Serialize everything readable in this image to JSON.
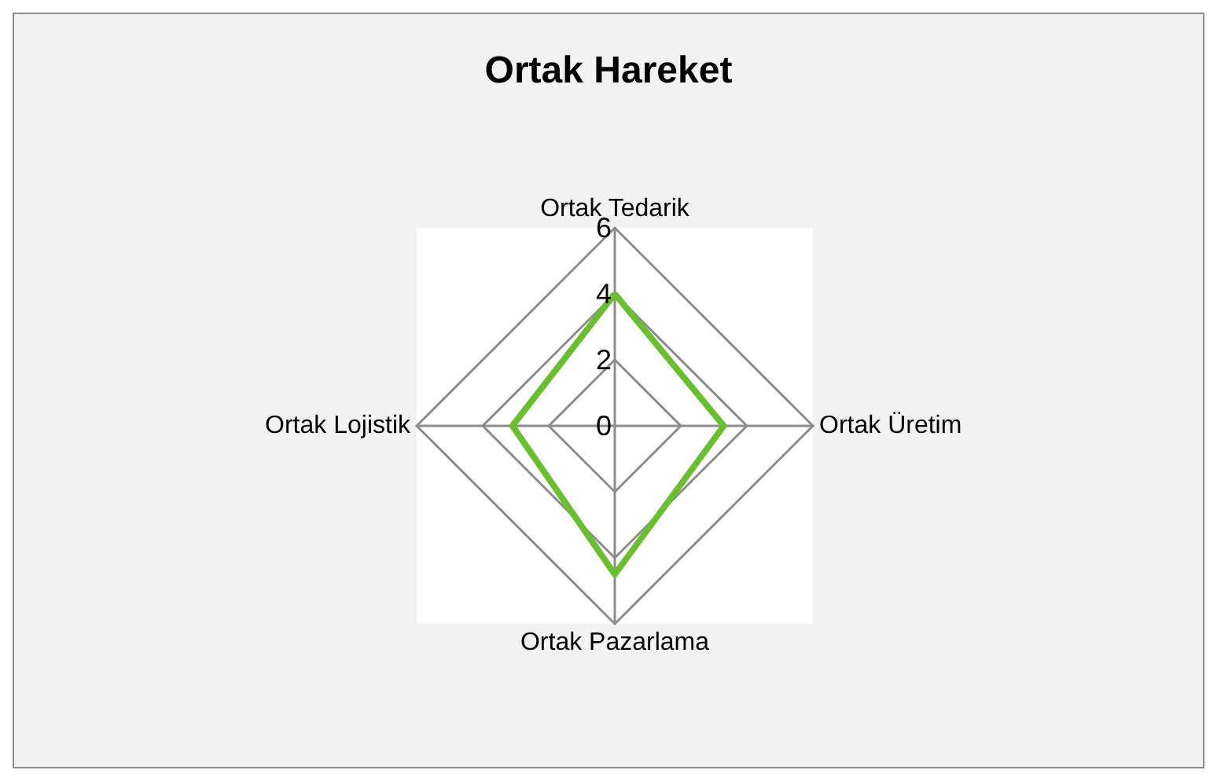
{
  "chart_data": {
    "type": "radar",
    "title": "Ortak Hareket",
    "categories": [
      "Ortak Tedarik",
      "Ortak Üretim",
      "Ortak Pazarlama",
      "Ortak Lojistik"
    ],
    "series": [
      {
        "color": "#6abf30",
        "values": [
          4,
          3.3,
          4.5,
          3.1
        ]
      }
    ],
    "ylim": [
      0,
      6
    ],
    "yticks": [
      0,
      2,
      4,
      6
    ],
    "marker": "none"
  }
}
